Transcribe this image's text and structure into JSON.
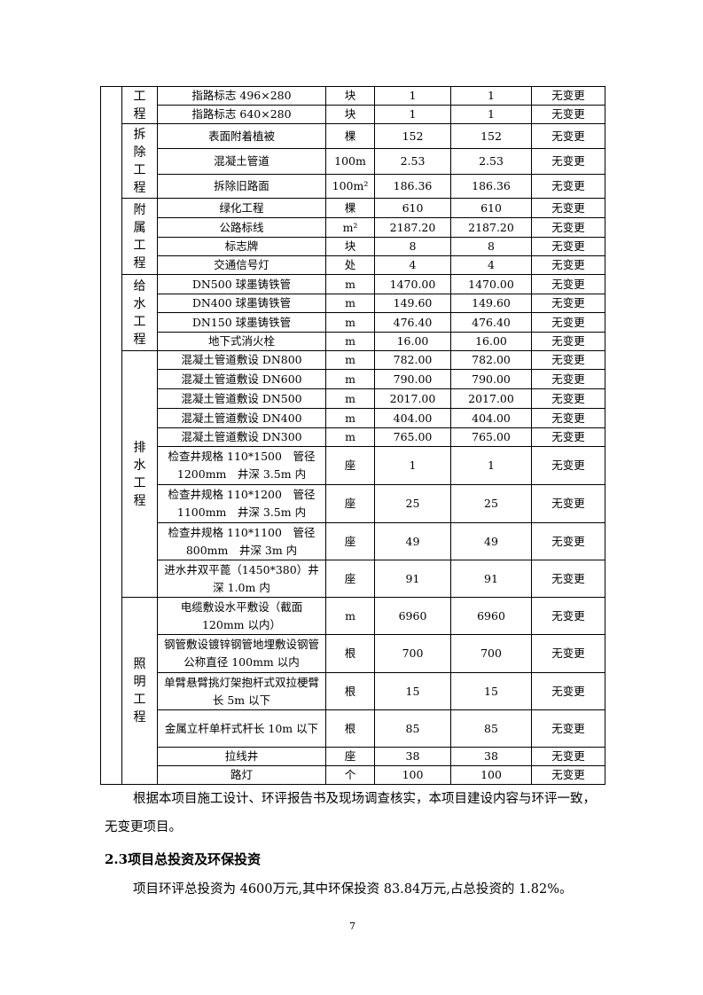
{
  "table": {
    "groups": [
      "工程",
      "拆除工程",
      "附属工程",
      "给水工程",
      "排水工程",
      "照明工程"
    ],
    "rows": [
      [
        "指路标志 496×280",
        "块",
        "1",
        "1",
        "无变更"
      ],
      [
        "指路标志 640×280",
        "块",
        "1",
        "1",
        "无变更"
      ],
      [
        "表面附着植被",
        "棵",
        "152",
        "152",
        "无变更"
      ],
      [
        "混凝土管道",
        "100m",
        "2.53",
        "2.53",
        "无变更"
      ],
      [
        "拆除旧路面",
        "100m²",
        "186.36",
        "186.36",
        "无变更"
      ],
      [
        "绿化工程",
        "棵",
        "610",
        "610",
        "无变更"
      ],
      [
        "公路标线",
        "m²",
        "2187.20",
        "2187.20",
        "无变更"
      ],
      [
        "标志牌",
        "块",
        "8",
        "8",
        "无变更"
      ],
      [
        "交通信号灯",
        "处",
        "4",
        "4",
        "无变更"
      ],
      [
        "DN500 球墨铸铁管",
        "m",
        "1470.00",
        "1470.00",
        "无变更"
      ],
      [
        "DN400 球墨铸铁管",
        "m",
        "149.60",
        "149.60",
        "无变更"
      ],
      [
        "DN150 球墨铸铁管",
        "m",
        "476.40",
        "476.40",
        "无变更"
      ],
      [
        "地下式消火栓",
        "m",
        "16.00",
        "16.00",
        "无变更"
      ],
      [
        "混凝土管道敷设 DN800",
        "m",
        "782.00",
        "782.00",
        "无变更"
      ],
      [
        "混凝土管道敷设 DN600",
        "m",
        "790.00",
        "790.00",
        "无变更"
      ],
      [
        "混凝土管道敷设 DN500",
        "m",
        "2017.00",
        "2017.00",
        "无变更"
      ],
      [
        "混凝土管道敷设 DN400",
        "m",
        "404.00",
        "404.00",
        "无变更"
      ],
      [
        "混凝土管道敷设 DN300",
        "m",
        "765.00",
        "765.00",
        "无变更"
      ],
      [
        "检查井规格 110*1500　管径 1200mm　井深 3.5m 内",
        "座",
        "1",
        "1",
        "无变更"
      ],
      [
        "检查井规格 110*1200　管径 1100mm　井深 3.5m 内",
        "座",
        "25",
        "25",
        "无变更"
      ],
      [
        "检查井规格 110*1100　管径 800mm　井深 3m 内",
        "座",
        "49",
        "49",
        "无变更"
      ],
      [
        "进水井双平蓖（1450*380）井深 1.0m 内",
        "座",
        "91",
        "91",
        "无变更"
      ],
      [
        "电缆敷设水平敷设（截面 120mm 以内）",
        "m",
        "6960",
        "6960",
        "无变更"
      ],
      [
        "钢管敷设镀锌钢管地埋敷设钢管公称直径 100mm 以内",
        "根",
        "700",
        "700",
        "无变更"
      ],
      [
        "单臂悬臂挑灯架抱杆式双拉梗臂长 5m 以下",
        "根",
        "15",
        "15",
        "无变更"
      ],
      [
        "金属立杆单杆式杆长 10m 以下",
        "根",
        "85",
        "85",
        "无变更"
      ],
      [
        "拉线井",
        "座",
        "38",
        "38",
        "无变更"
      ],
      [
        "路灯",
        "个",
        "100",
        "100",
        "无变更"
      ]
    ]
  },
  "body": {
    "paragraph1": "根据本项目施工设计、环评报告书及现场调查核实，本项目建设内容与环评一致，无变更项目。",
    "heading": "2.3项目总投资及环保投资",
    "paragraph2": "项目环评总投资为 4600万元,其中环保投资 83.84万元,占总投资的 1.82%。",
    "page_number": "7"
  }
}
